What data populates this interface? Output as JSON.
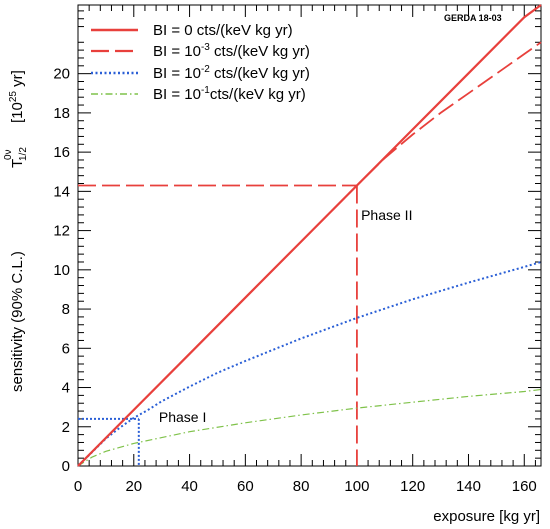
{
  "chart_data": {
    "type": "line",
    "tag": "GERDA 18-03",
    "xlabel": "exposure [kg yr]",
    "ylabel_prefix": "sensitivity (90% C.L.)",
    "ylabel_symbol": "T",
    "ylabel_sup": "0ν",
    "ylabel_sub": "1/2",
    "ylabel_unit_base": "[10",
    "ylabel_unit_exp": "25",
    "ylabel_unit_end": " yr]",
    "xlim": [
      0,
      166
    ],
    "ylim": [
      0,
      23.5
    ],
    "x_ticks": [
      0,
      20,
      40,
      60,
      80,
      100,
      120,
      140,
      160
    ],
    "y_ticks": [
      0,
      2,
      4,
      6,
      8,
      10,
      12,
      14,
      16,
      18,
      20
    ],
    "grid": false,
    "legend_position": "top-left",
    "series": [
      {
        "name": "BI =   0   cts/(keV kg yr)",
        "legend_prefix": "BI =   0   cts/(keV kg yr)",
        "legend_exp": "",
        "legend_suffix": "",
        "color": "#e8403c",
        "style": "solid",
        "x": [
          0,
          10,
          20,
          40,
          60,
          80,
          100,
          120,
          140,
          160,
          166
        ],
        "y": [
          0,
          1.43,
          2.86,
          5.72,
          8.58,
          11.44,
          14.3,
          17.16,
          20.02,
          22.88,
          23.5
        ]
      },
      {
        "name": "BI = 10^-3 cts/(keV kg yr)",
        "legend_prefix": "BI = 10",
        "legend_exp": "-3",
        "legend_suffix": " cts/(keV kg yr)",
        "color": "#e8403c",
        "style": "dashed",
        "x": [
          0,
          20,
          40,
          60,
          80,
          100,
          110,
          120,
          130,
          140,
          150,
          160,
          166
        ],
        "y": [
          0,
          2.86,
          5.72,
          8.58,
          11.44,
          14.3,
          15.7,
          16.9,
          18.0,
          19.0,
          20.0,
          21.0,
          21.6
        ]
      },
      {
        "name": "BI = 10^-2 cts/(keV kg yr)",
        "legend_prefix": "BI = 10",
        "legend_exp": "-2",
        "legend_suffix": " cts/(keV kg yr)",
        "color": "#2a5fd6",
        "style": "dotted",
        "x": [
          0,
          5,
          10,
          15,
          20,
          25,
          30,
          40,
          50,
          60,
          80,
          100,
          120,
          140,
          160,
          166
        ],
        "y": [
          0,
          0.7,
          1.4,
          1.95,
          2.45,
          2.85,
          3.3,
          4.05,
          4.75,
          5.35,
          6.5,
          7.55,
          8.5,
          9.35,
          10.15,
          10.4
        ]
      },
      {
        "name": "BI = 10^-1 cts/(keV kg yr)",
        "legend_prefix": "BI = 10",
        "legend_exp": "-1",
        "legend_suffix": "cts/(keV kg yr)",
        "color": "#7fc24a",
        "style": "dashdot",
        "x": [
          0,
          5,
          10,
          20,
          30,
          40,
          60,
          80,
          100,
          120,
          140,
          160,
          166
        ],
        "y": [
          0,
          0.45,
          0.75,
          1.15,
          1.45,
          1.75,
          2.2,
          2.6,
          2.95,
          3.25,
          3.55,
          3.8,
          3.9
        ]
      }
    ],
    "annotations": [
      {
        "label": "Phase II",
        "color": "#e8403c",
        "x": 100,
        "y": 14.3,
        "style": "dashed",
        "text_x": 101.5,
        "text_y": 12.8
      },
      {
        "label": "Phase I",
        "color": "#2a5fd6",
        "x": 21.8,
        "y": 2.4,
        "style": "dotted",
        "text_x": 29,
        "text_y": 2.5
      }
    ]
  }
}
